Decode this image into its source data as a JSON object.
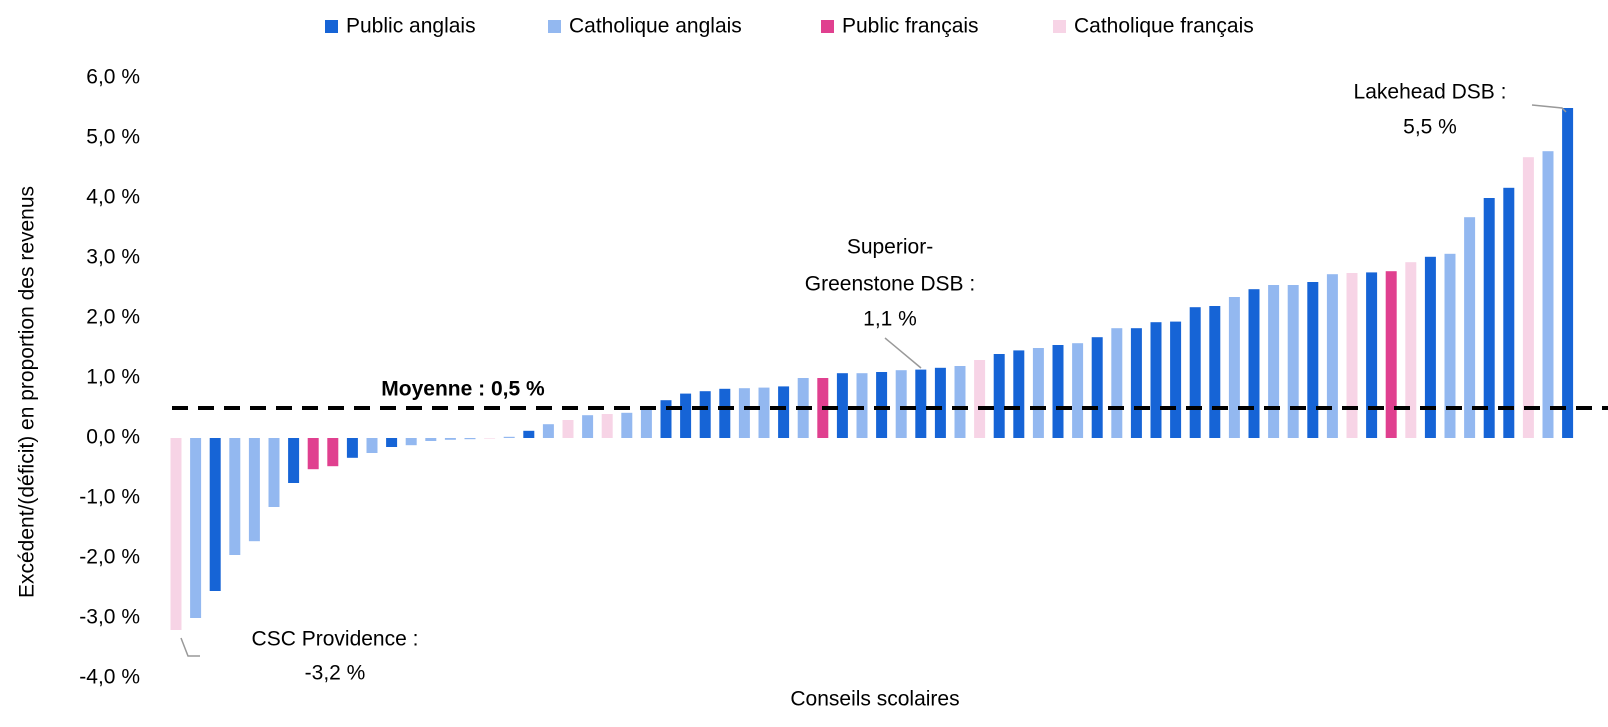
{
  "chart_data": {
    "type": "bar",
    "y_axis_label": "Excédent/(déficit) en proportion des revenus",
    "x_axis_label": "Conseils scolaires",
    "ylim": [
      -4,
      6
    ],
    "yticks": [
      {
        "value": -4,
        "label": "-4,0 %"
      },
      {
        "value": -3,
        "label": "-3,0 %"
      },
      {
        "value": -2,
        "label": "-2,0 %"
      },
      {
        "value": -1,
        "label": "-1,0 %"
      },
      {
        "value": 0,
        "label": "0,0 %"
      },
      {
        "value": 1,
        "label": "1,0 %"
      },
      {
        "value": 2,
        "label": "2,0 %"
      },
      {
        "value": 3,
        "label": "3,0 %"
      },
      {
        "value": 4,
        "label": "4,0 %"
      },
      {
        "value": 5,
        "label": "5,0 %"
      },
      {
        "value": 6,
        "label": "6,0 %"
      }
    ],
    "grid": false,
    "legend": "top",
    "categories": [
      null,
      null,
      null,
      null,
      null,
      null,
      null,
      null,
      null,
      null,
      null,
      null,
      null,
      null,
      null,
      null,
      null,
      null,
      null,
      null,
      null,
      null,
      null,
      null,
      null,
      null,
      null,
      null,
      null,
      null,
      null,
      null,
      null,
      null,
      null,
      null,
      null,
      null,
      null,
      null,
      null,
      null,
      null,
      null,
      null,
      null,
      null,
      null,
      null,
      null,
      null,
      null,
      null,
      null,
      null,
      null,
      null,
      null,
      null,
      null,
      null,
      null,
      null,
      null,
      null,
      null,
      null,
      null,
      null,
      null,
      null,
      null
    ],
    "series": [
      {
        "name": "Public anglais",
        "color": "#1664d6",
        "values": [
          null,
          null,
          -2.55,
          null,
          null,
          null,
          -0.75,
          null,
          null,
          -0.33,
          null,
          -0.15,
          null,
          null,
          null,
          null,
          null,
          null,
          0.12,
          null,
          null,
          null,
          null,
          null,
          null,
          0.63,
          0.74,
          0.78,
          0.82,
          null,
          null,
          0.86,
          null,
          null,
          1.08,
          null,
          1.1,
          null,
          1.14,
          1.17,
          null,
          null,
          1.4,
          1.46,
          null,
          1.55,
          null,
          1.68,
          null,
          1.83,
          1.93,
          1.94,
          2.18,
          2.2,
          null,
          2.48,
          null,
          null,
          2.6,
          null,
          null,
          2.76,
          null,
          null,
          3.02,
          null,
          null,
          4.0,
          4.17,
          null,
          null,
          5.5
        ]
      },
      {
        "name": "Catholique anglais",
        "color": "#93b8f0",
        "values": [
          null,
          -3.0,
          null,
          -1.95,
          -1.72,
          -1.15,
          null,
          null,
          null,
          null,
          -0.25,
          null,
          -0.12,
          -0.05,
          -0.03,
          -0.02,
          null,
          0.02,
          null,
          0.23,
          null,
          0.38,
          null,
          0.42,
          0.5,
          null,
          null,
          null,
          null,
          0.83,
          0.84,
          null,
          1.0,
          null,
          null,
          1.08,
          null,
          1.13,
          null,
          null,
          1.2,
          null,
          null,
          null,
          1.5,
          null,
          1.58,
          null,
          1.83,
          null,
          null,
          null,
          null,
          null,
          2.35,
          null,
          2.55,
          2.55,
          null,
          2.73,
          null,
          null,
          null,
          null,
          null,
          3.07,
          3.68,
          null,
          null,
          null,
          4.78,
          null
        ]
      },
      {
        "name": "Public français",
        "color": "#e0408f",
        "values": [
          null,
          null,
          null,
          null,
          null,
          null,
          null,
          -0.52,
          -0.47,
          null,
          null,
          null,
          null,
          null,
          null,
          null,
          null,
          null,
          null,
          null,
          null,
          null,
          null,
          null,
          null,
          null,
          null,
          null,
          null,
          null,
          null,
          null,
          null,
          1.0,
          null,
          null,
          null,
          null,
          null,
          null,
          null,
          null,
          null,
          null,
          null,
          null,
          null,
          null,
          null,
          null,
          null,
          null,
          null,
          null,
          null,
          null,
          null,
          null,
          null,
          null,
          null,
          null,
          2.78,
          null,
          null,
          null,
          null,
          null,
          null,
          null,
          null,
          null
        ]
      },
      {
        "name": "Catholique français",
        "color": "#f7d4e6",
        "values": [
          -3.2,
          null,
          null,
          null,
          null,
          null,
          null,
          null,
          null,
          null,
          null,
          null,
          null,
          null,
          null,
          null,
          -0.01,
          null,
          null,
          null,
          0.3,
          null,
          0.4,
          null,
          null,
          null,
          null,
          null,
          null,
          null,
          null,
          null,
          null,
          null,
          null,
          null,
          null,
          null,
          null,
          null,
          null,
          1.3,
          null,
          null,
          null,
          null,
          null,
          null,
          null,
          null,
          null,
          null,
          null,
          null,
          null,
          null,
          null,
          null,
          null,
          null,
          2.75,
          null,
          null,
          2.93,
          null,
          null,
          null,
          null,
          null,
          4.68,
          null,
          null
        ]
      }
    ],
    "mean": {
      "value": 0.5,
      "label": "Moyenne : 0,5 %"
    },
    "annotations": [
      {
        "lines": [
          "CSC Providence :",
          "-3,2 %"
        ]
      },
      {
        "lines": [
          "Superior-",
          "Greenstone DSB :",
          "1,1 %"
        ]
      },
      {
        "lines": [
          "Lakehead DSB :",
          "5,5 %"
        ]
      }
    ]
  }
}
